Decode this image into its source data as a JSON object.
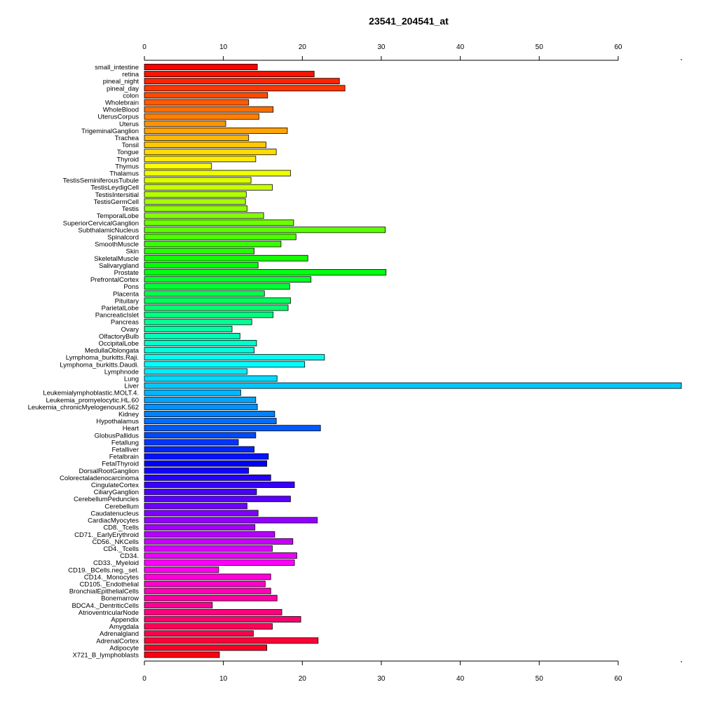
{
  "chart_data": {
    "type": "bar",
    "orientation": "horizontal",
    "title": "23541_204541_at",
    "xlabel": "",
    "ylabel": "",
    "xlim": [
      0,
      68
    ],
    "x_ticks": [
      0,
      10,
      20,
      30,
      40,
      50,
      60
    ],
    "axes": [
      "top",
      "bottom"
    ],
    "grid": false,
    "legend": "none",
    "color_scheme": "rainbow",
    "categories": [
      "small_intestine",
      "retina",
      "pineal_night",
      "pineal_day",
      "colon",
      "Wholebrain",
      "WholeBlood",
      "UterusCorpus",
      "Uterus",
      "TrigeminalGanglion",
      "Trachea",
      "Tonsil",
      "Tongue",
      "Thyroid",
      "Thymus",
      "Thalamus",
      "TestisSeminiferousTubule",
      "TestisLeydigCell",
      "TestisIntersitial",
      "TestisGermCell",
      "Testis",
      "TemporalLobe",
      "SuperiorCervicalGanglion",
      "SubthalamicNucleus",
      "Spinalcord",
      "SmoothMuscle",
      "Skin",
      "SkeletalMuscle",
      "Salivarygland",
      "Prostate",
      "PrefrontalCortex",
      "Pons",
      "Placenta",
      "Pituitary",
      "ParietalLobe",
      "PancreaticIslet",
      "Pancreas",
      "Ovary",
      "OlfactoryBulb",
      "OccipitalLobe",
      "MedullaOblongata",
      "Lymphoma_burkitts.Raji.",
      "Lymphoma_burkitts.Daudi.",
      "Lymphnode",
      "Lung",
      "Liver",
      "Leukemialymphoblastic.MOLT.4.",
      "Leukemia_promyelocytic.HL.60",
      "Leukemia_chronicMyelogenousK.562",
      "Kidney",
      "Hypothalamus",
      "Heart",
      "GlobusPallidus",
      "Fetallung",
      "Fetalliver",
      "Fetalbrain",
      "FetalThyroid",
      "DorsalRootGanglion",
      "Colorectaladenocarcinoma",
      "CingulateCortex",
      "CiliaryGanglion",
      "CerebellumPeduncles",
      "Cerebellum",
      "Caudatenucleus",
      "CardiacMyocytes",
      "CD8._Tcells",
      "CD71._EarlyErythroid",
      "CD56._NKCells",
      "CD4._Tcells",
      "CD34.",
      "CD33._Myeloid",
      "CD19._BCells.neg._sel.",
      "CD14._Monocytes",
      "CD105._Endothelial",
      "BronchialEpithelialCells",
      "Bonemarrow",
      "BDCA4._DentriticCells",
      "AtrioventricularNode",
      "Appendix",
      "Amygdala",
      "Adrenalgland",
      "AdrenalCortex",
      "Adipocyte",
      "X721_B_lymphoblasts"
    ],
    "values": [
      14.3,
      21.5,
      24.7,
      25.4,
      15.6,
      13.2,
      16.3,
      14.5,
      10.3,
      18.1,
      13.2,
      15.4,
      16.7,
      14.1,
      8.5,
      18.5,
      13.5,
      16.2,
      12.9,
      12.8,
      13.0,
      15.1,
      18.9,
      30.5,
      19.2,
      17.3,
      13.9,
      20.7,
      14.4,
      30.6,
      21.1,
      18.4,
      15.2,
      18.5,
      18.2,
      16.3,
      13.6,
      11.1,
      12.1,
      14.2,
      13.9,
      22.8,
      20.3,
      13.0,
      16.8,
      68.0,
      12.2,
      14.1,
      14.3,
      16.5,
      16.7,
      22.3,
      14.1,
      11.9,
      13.9,
      15.7,
      15.5,
      13.2,
      16.0,
      19.0,
      14.2,
      18.5,
      13.0,
      14.4,
      21.9,
      14.0,
      16.5,
      18.8,
      16.2,
      19.3,
      19.0,
      9.4,
      16.0,
      15.3,
      16.0,
      16.8,
      8.6,
      17.4,
      19.8,
      16.2,
      13.8,
      22.0,
      15.5,
      9.5
    ]
  }
}
